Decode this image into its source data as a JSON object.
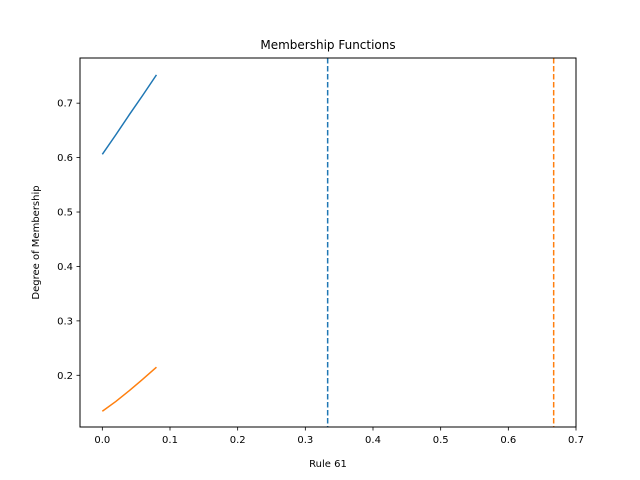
{
  "chart_data": {
    "type": "line",
    "title": "Membership Functions",
    "xlabel": "Rule 61",
    "ylabel": "Degree of Membership",
    "xlim": [
      -0.033,
      0.7
    ],
    "ylim": [
      0.105,
      0.783
    ],
    "x_ticks": [
      0.0,
      0.1,
      0.2,
      0.3,
      0.4,
      0.5,
      0.6,
      0.7
    ],
    "y_ticks": [
      0.2,
      0.3,
      0.4,
      0.5,
      0.6,
      0.7
    ],
    "grid": false,
    "series": [
      {
        "color": "#1f77b4",
        "x": [
          0.0,
          0.02,
          0.04,
          0.06,
          0.08
        ],
        "y": [
          0.606,
          0.642,
          0.679,
          0.715,
          0.752
        ]
      },
      {
        "color": "#ff7f0e",
        "x": [
          0.0,
          0.02,
          0.04,
          0.06,
          0.08
        ],
        "y": [
          0.134,
          0.152,
          0.172,
          0.193,
          0.215
        ]
      }
    ],
    "vlines": [
      {
        "x": 0.333,
        "color": "#1f77b4",
        "style": "dashed"
      },
      {
        "x": 0.667,
        "color": "#ff7f0e",
        "style": "dashed"
      }
    ]
  }
}
